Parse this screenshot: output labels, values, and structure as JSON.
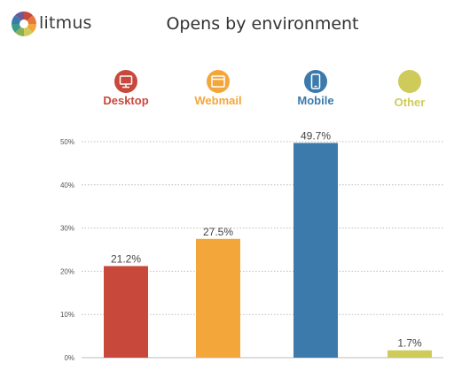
{
  "brand": {
    "name": "litmus"
  },
  "chart_data": {
    "type": "bar",
    "title": "Opens by environment",
    "categories": [
      "Desktop",
      "Webmail",
      "Mobile",
      "Other"
    ],
    "values": [
      21.2,
      27.5,
      49.7,
      1.7
    ],
    "data_labels": [
      "21.2%",
      "27.5%",
      "49.7%",
      "1.7%"
    ],
    "colors": [
      "#c8493c",
      "#f3a73b",
      "#3b7aab",
      "#cfcb5a"
    ],
    "icons": [
      "monitor-icon",
      "browser-window-icon",
      "smartphone-icon",
      ""
    ],
    "ylim": [
      0,
      50
    ],
    "yticks": [
      0,
      10,
      20,
      30,
      40,
      50
    ],
    "ytick_labels": [
      "0%",
      "10%",
      "20%",
      "30%",
      "40%",
      "50%"
    ],
    "xlabel": "",
    "ylabel": "",
    "grid": true,
    "legend": "top"
  }
}
